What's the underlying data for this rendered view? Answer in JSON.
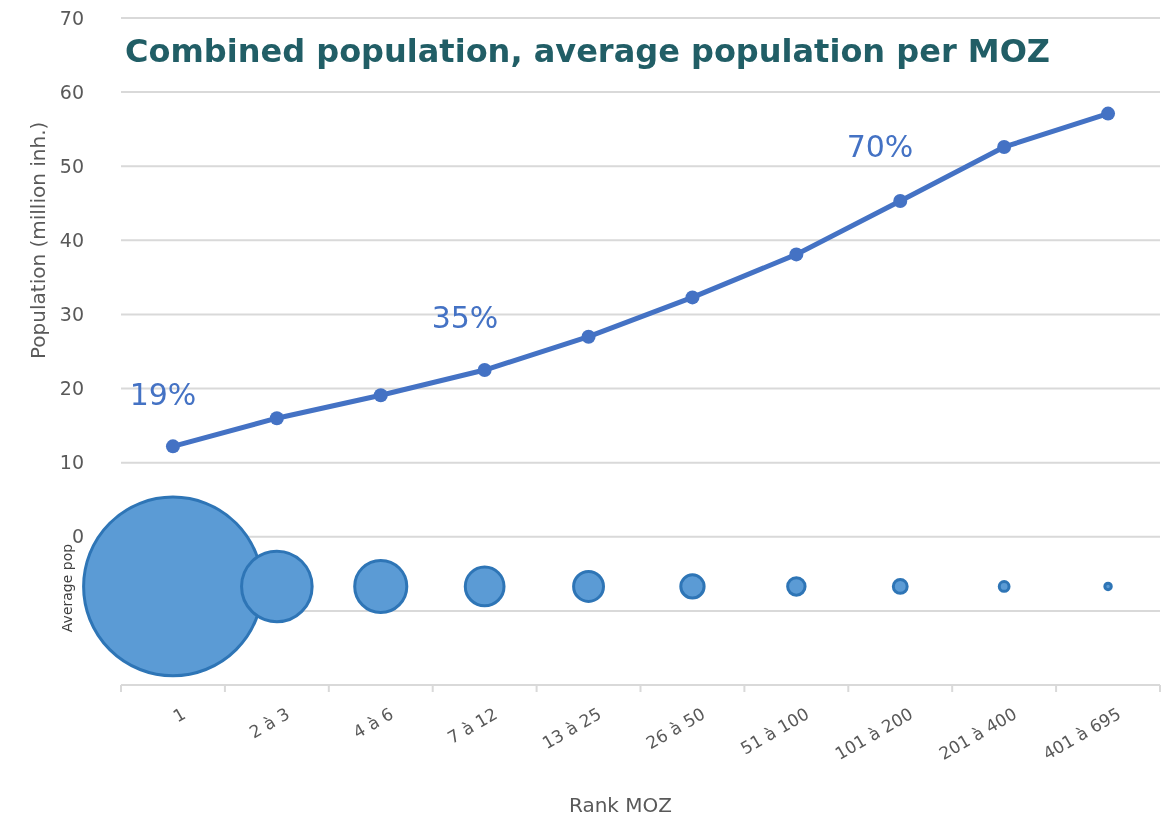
{
  "chart_data": {
    "type": "line",
    "title": "Combined population, average population per MOZ",
    "xlabel": "Rank MOZ",
    "ylabel": "Population (million inh.)",
    "categories": [
      "1",
      "2 à 3",
      "4 à 6",
      "7 à 12",
      "13 à 25",
      "26 à 50",
      "51 à 100",
      "101 à 200",
      "201 à 400",
      "401 à 695"
    ],
    "series": [
      {
        "color": "#4472c4",
        "values": [
          12.2,
          16,
          19.1,
          22.5,
          27,
          32.3,
          38.1,
          45.3,
          52.6,
          57.1
        ]
      },
      {
        "type": "bubble",
        "color": "#5b9bd5",
        "values": [
          -6.7,
          -6.7,
          -6.7,
          -6.7,
          -6.7,
          -6.7,
          -6.7,
          -6.7,
          -6.7,
          -6.7
        ],
        "sizes": [
          1,
          0.156,
          0.085,
          0.047,
          0.028,
          0.017,
          0.0095,
          0.006,
          0.003,
          0.0013
        ]
      }
    ],
    "ylim": [
      -20,
      70
    ],
    "yticks": [
      {
        "value": -20,
        "label": null
      },
      {
        "value": -10,
        "label": null
      },
      0,
      10,
      20,
      30,
      40,
      50,
      60,
      70
    ],
    "grid": "y",
    "marker": "circle",
    "line_style": "solid",
    "annotations": [
      "19%",
      "35%",
      "70%",
      "Average pop"
    ]
  }
}
